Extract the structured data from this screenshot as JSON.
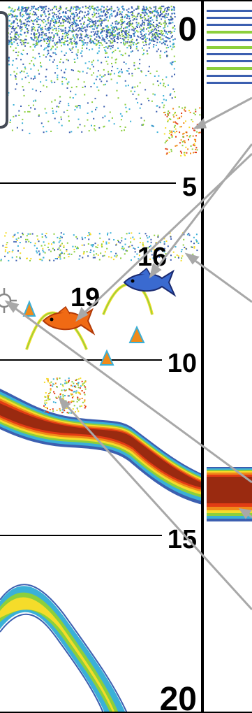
{
  "display": {
    "depth_scale": [
      "0",
      "5",
      "10",
      "15",
      "20"
    ],
    "fish_depth_labels": [
      "19",
      "16"
    ],
    "fish_icons": [
      "fish-icon",
      "fish-icon"
    ],
    "cursor_icon": "crosshair-icon",
    "colors": {
      "background": "#ffffff",
      "depth_line": "#000000",
      "callout_arrow": "#a8a8a8",
      "bottom_core": "#9a2a10",
      "bottom_band": [
        "#e23c14",
        "#f08a1a",
        "#f5dc2a",
        "#8ccf3c",
        "#3ab0d8",
        "#3c5fb0"
      ],
      "fish_large": "#f06a14",
      "fish_small": "#3a6ad0"
    }
  }
}
